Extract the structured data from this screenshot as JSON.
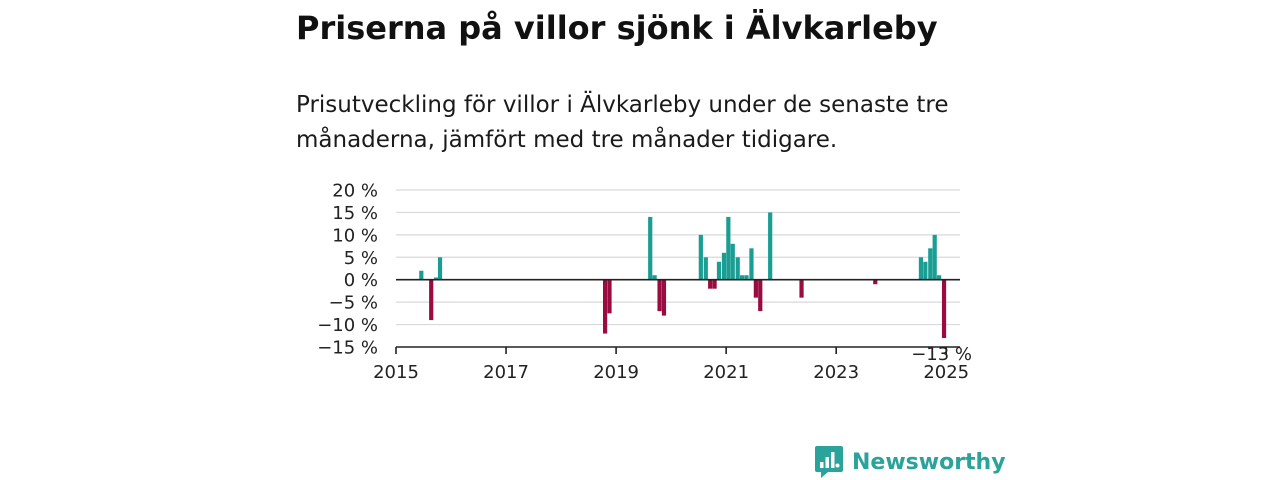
{
  "title": "Priserna på villor sjönk i Älvkarleby",
  "subtitle": "Prisutveckling för villor i Älvkarleby under de senaste tre månaderna, jämfört med tre månader tidigare.",
  "brand": {
    "name": "Newsworthy",
    "icon": "newsworthy-logo-icon"
  },
  "colors": {
    "positive": "#1a9e93",
    "negative": "#9a0b3f",
    "grid": "#d9d9d9",
    "axis": "#222222",
    "brand": "#2aa39a"
  },
  "chart_data": {
    "type": "bar",
    "xlabel": "",
    "ylabel": "",
    "ylim": [
      -15,
      20
    ],
    "yticks": [
      20,
      15,
      10,
      5,
      0,
      -5,
      -10,
      -15
    ],
    "ytick_labels": [
      "20 %",
      "15 %",
      "10 %",
      "5 %",
      "0 %",
      "−5 %",
      "−10 %",
      "−15 %"
    ],
    "xlim": [
      2015,
      2025.25
    ],
    "xticks": [
      2015,
      2017,
      2019,
      2021,
      2023,
      2025
    ],
    "xtick_labels": [
      "2015",
      "2017",
      "2019",
      "2021",
      "2023",
      "2025"
    ],
    "grid": true,
    "last_value_label": "−13 %",
    "bars": [
      {
        "x": 2015.46,
        "value": 2
      },
      {
        "x": 2015.64,
        "value": -9
      },
      {
        "x": 2015.73,
        "value": 0.5
      },
      {
        "x": 2015.8,
        "value": 5
      },
      {
        "x": 2018.8,
        "value": -12
      },
      {
        "x": 2018.88,
        "value": -7.5
      },
      {
        "x": 2019.62,
        "value": 14
      },
      {
        "x": 2019.7,
        "value": 1
      },
      {
        "x": 2019.79,
        "value": -7
      },
      {
        "x": 2019.87,
        "value": -8
      },
      {
        "x": 2020.54,
        "value": 10
      },
      {
        "x": 2020.63,
        "value": 5
      },
      {
        "x": 2020.71,
        "value": -2
      },
      {
        "x": 2020.79,
        "value": -2
      },
      {
        "x": 2020.87,
        "value": 4
      },
      {
        "x": 2020.96,
        "value": 6
      },
      {
        "x": 2021.04,
        "value": 14
      },
      {
        "x": 2021.12,
        "value": 8
      },
      {
        "x": 2021.21,
        "value": 5
      },
      {
        "x": 2021.29,
        "value": 1
      },
      {
        "x": 2021.37,
        "value": 1
      },
      {
        "x": 2021.46,
        "value": 7
      },
      {
        "x": 2021.54,
        "value": -4
      },
      {
        "x": 2021.62,
        "value": -7
      },
      {
        "x": 2021.8,
        "value": 15
      },
      {
        "x": 2022.37,
        "value": -4
      },
      {
        "x": 2023.71,
        "value": -1
      },
      {
        "x": 2024.54,
        "value": 5
      },
      {
        "x": 2024.62,
        "value": 4
      },
      {
        "x": 2024.71,
        "value": 7
      },
      {
        "x": 2024.79,
        "value": 10
      },
      {
        "x": 2024.87,
        "value": 1
      },
      {
        "x": 2024.96,
        "value": -13
      }
    ]
  }
}
